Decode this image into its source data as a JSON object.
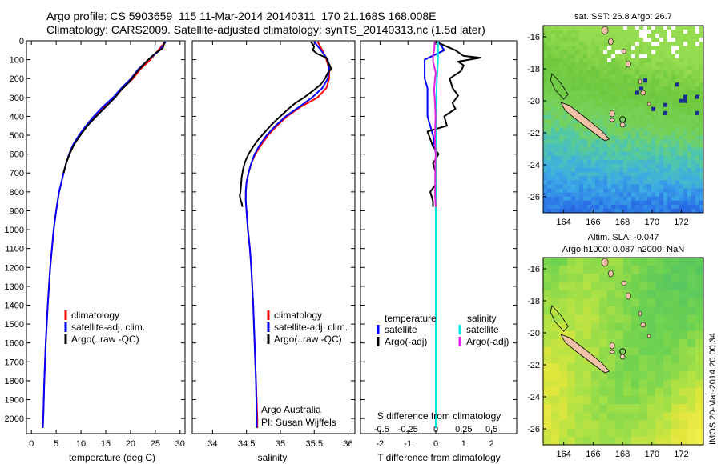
{
  "header": {
    "line1": "Argo profile: CS 5903659_115 11-Mar-2014 20140311_170 21.168S 168.008E",
    "line2": "Climatology: CARS2009. Satellite-adjusted climatology: synTS_20140313.nc (1.5d later)"
  },
  "footer": {
    "stamp": "IMOS 20-Mar-2014 20:00:34"
  },
  "credits": {
    "line1": "Argo Australia",
    "line2": "PI: Susan Wijffels"
  },
  "colors": {
    "climatology": "#ff0000",
    "satellite": "#0000ff",
    "argo": "#000000",
    "salinity_satellite": "#00e5e5",
    "salinity_argo": "#e020e0"
  },
  "chart_data": [
    {
      "id": "temperature",
      "type": "line",
      "xlabel": "temperature (deg C)",
      "ylabel": "depth",
      "xlim": [
        -1,
        31
      ],
      "ylim": [
        2080,
        0
      ],
      "xticks": [
        0,
        5,
        10,
        15,
        20,
        25,
        30
      ],
      "xtick_labels": [
        "0",
        "5",
        "10",
        "15",
        "20",
        "25",
        "30"
      ],
      "yticks": [
        0,
        100,
        200,
        300,
        400,
        500,
        600,
        700,
        800,
        900,
        1000,
        1100,
        1200,
        1300,
        1400,
        1500,
        1600,
        1700,
        1800,
        1900,
        2000
      ],
      "ytick_labels": [
        "0",
        "100",
        "200",
        "300",
        "400",
        "500",
        "600",
        "700",
        "800",
        "900",
        "1000",
        "1100",
        "1200",
        "1300",
        "1400",
        "1500",
        "1600",
        "1700",
        "1800",
        "1900",
        "2000"
      ],
      "legend": [
        "climatology",
        "satellite-adj. clim.",
        "Argo(..raw -QC)"
      ],
      "series": [
        {
          "name": "climatology",
          "depth": [
            5,
            50,
            100,
            150,
            200,
            250,
            300,
            350,
            400,
            450,
            500,
            550,
            600,
            650,
            700,
            800,
            900,
            1000,
            1200,
            1400,
            1600,
            1800,
            2000,
            2050
          ],
          "values": [
            27.0,
            25.6,
            24.0,
            22.0,
            20.5,
            18.5,
            16.8,
            14.7,
            12.8,
            11.2,
            9.7,
            8.5,
            7.7,
            7.0,
            6.5,
            5.6,
            5.0,
            4.5,
            3.8,
            3.3,
            2.9,
            2.6,
            2.4,
            2.3
          ]
        },
        {
          "name": "satellite-adj. clim.",
          "depth": [
            5,
            50,
            100,
            150,
            200,
            250,
            300,
            350,
            400,
            450,
            500,
            550,
            600,
            650,
            700,
            800,
            900,
            1000,
            1200,
            1400,
            1600,
            1800,
            2000,
            2050
          ],
          "values": [
            27.1,
            25.9,
            23.6,
            21.6,
            20.1,
            18.2,
            16.5,
            14.4,
            12.6,
            11.0,
            9.6,
            8.4,
            7.6,
            7.0,
            6.5,
            5.6,
            5.0,
            4.5,
            3.8,
            3.3,
            2.9,
            2.6,
            2.4,
            2.3
          ]
        },
        {
          "name": "Argo(..raw -QC)",
          "depth": [
            5,
            40,
            60,
            80,
            100,
            120,
            150,
            180,
            200,
            230,
            260,
            300,
            350,
            400,
            450,
            500,
            550,
            600,
            650,
            700
          ],
          "values": [
            26.9,
            26.5,
            25.3,
            24.4,
            23.6,
            22.8,
            21.8,
            20.8,
            20.3,
            19.3,
            18.1,
            16.9,
            15.0,
            13.1,
            11.3,
            9.9,
            8.6,
            7.7,
            7.0,
            6.5
          ]
        }
      ]
    },
    {
      "id": "salinity",
      "type": "line",
      "xlabel": "salinity",
      "ylabel": "depth",
      "xlim": [
        33.7,
        36.1
      ],
      "ylim": [
        2080,
        0
      ],
      "xticks": [
        34,
        34.5,
        35,
        35.5,
        36
      ],
      "xtick_labels": [
        "34",
        "34.5",
        "35",
        "35.5",
        "36"
      ],
      "legend": [
        "climatology",
        "satellite-adj. clim.",
        "Argo(..raw -QC)"
      ],
      "series": [
        {
          "name": "climatology",
          "depth": [
            5,
            50,
            100,
            150,
            200,
            250,
            300,
            350,
            400,
            450,
            500,
            550,
            600,
            650,
            700,
            750,
            800,
            850,
            900,
            1000,
            1100,
            1200,
            1400,
            1600,
            1800,
            2000,
            2050
          ],
          "values": [
            35.55,
            35.62,
            35.68,
            35.72,
            35.72,
            35.68,
            35.55,
            35.3,
            35.1,
            34.95,
            34.82,
            34.72,
            34.63,
            34.57,
            34.53,
            34.5,
            34.49,
            34.49,
            34.5,
            34.52,
            34.55,
            34.57,
            34.6,
            34.62,
            34.64,
            34.66,
            34.66
          ]
        },
        {
          "name": "satellite-adj. clim.",
          "depth": [
            5,
            50,
            100,
            150,
            200,
            250,
            300,
            350,
            400,
            450,
            500,
            550,
            600,
            650,
            700,
            750,
            800,
            850,
            900,
            1000,
            1100,
            1200,
            1400,
            1600,
            1800,
            2000,
            2050
          ],
          "values": [
            35.5,
            35.6,
            35.7,
            35.72,
            35.7,
            35.62,
            35.47,
            35.28,
            35.08,
            34.93,
            34.8,
            34.7,
            34.62,
            34.57,
            34.53,
            34.5,
            34.49,
            34.49,
            34.5,
            34.52,
            34.55,
            34.57,
            34.6,
            34.62,
            34.64,
            34.65,
            34.65
          ]
        },
        {
          "name": "Argo(..raw -QC)",
          "depth": [
            5,
            30,
            50,
            70,
            90,
            110,
            130,
            150,
            170,
            200,
            230,
            260,
            300,
            330,
            360,
            400,
            440,
            480,
            520,
            560,
            600,
            640,
            680,
            720,
            760,
            800,
            820,
            840,
            860,
            880
          ],
          "values": [
            35.45,
            35.5,
            35.48,
            35.55,
            35.68,
            35.7,
            35.73,
            35.75,
            35.7,
            35.66,
            35.6,
            35.5,
            35.35,
            35.22,
            35.12,
            35.0,
            34.88,
            34.78,
            34.68,
            34.6,
            34.53,
            34.48,
            34.45,
            34.43,
            34.42,
            34.41,
            34.4,
            34.41,
            34.43,
            34.44
          ]
        }
      ]
    },
    {
      "id": "difference",
      "type": "line",
      "xlabel": "T difference from climatology",
      "x2label": "S difference from climatology",
      "ylabel": "depth",
      "xlim": [
        -2.7,
        2.9
      ],
      "ylim": [
        2080,
        0
      ],
      "xticks": [
        -2,
        -1,
        0,
        1,
        2
      ],
      "xtick_labels": [
        "-2",
        "-1",
        "0",
        "1",
        "2"
      ],
      "x2tick_labels": [
        "-0.5",
        "-0.25",
        "0",
        "0.25",
        "0.5"
      ],
      "legend_headers": [
        "temperature",
        "salinity"
      ],
      "legend": [
        "satellite",
        "Argo(-adj)",
        "satellite",
        "Argo(-adj)"
      ],
      "series": [
        {
          "name": "temperature satellite",
          "depth": [
            5,
            50,
            100,
            150,
            200,
            250,
            300,
            400,
            500,
            600,
            700,
            800,
            1000,
            1200,
            1500,
            1800,
            2050
          ],
          "values": [
            0.1,
            0.3,
            -0.4,
            -0.4,
            -0.4,
            -0.3,
            -0.3,
            -0.3,
            -0.1,
            0.0,
            0.0,
            0.0,
            0.0,
            0.0,
            0.0,
            0.0,
            0.0
          ]
        },
        {
          "name": "temperature Argo(-adj)",
          "depth": [
            5,
            50,
            80,
            90,
            110,
            130,
            160,
            200,
            250,
            290,
            330,
            360,
            400,
            450,
            480,
            520,
            560,
            600,
            650,
            700,
            760,
            800,
            850,
            880
          ],
          "values": [
            0.0,
            0.7,
            1.0,
            1.6,
            0.8,
            1.0,
            0.9,
            0.5,
            0.6,
            0.8,
            0.6,
            0.7,
            0.3,
            0.4,
            -0.3,
            -0.2,
            -0.1,
            0.1,
            -0.1,
            0.0,
            0.0,
            -0.2,
            -0.1,
            -0.1
          ]
        },
        {
          "name": "salinity satellite",
          "depth": [
            5,
            100,
            200,
            300,
            400,
            500,
            600,
            700,
            800,
            900,
            1000,
            1200,
            1500,
            1800,
            2050
          ],
          "values": [
            0.08,
            0.08,
            0.04,
            0.02,
            0.0,
            0.01,
            0.0,
            0.0,
            0.0,
            0.0,
            0.0,
            0.0,
            0.0,
            0.0,
            0.0
          ]
        },
        {
          "name": "salinity Argo(-adj)",
          "depth": [
            5,
            40,
            80,
            110,
            140,
            170,
            200,
            260,
            300,
            360,
            400,
            450,
            500,
            550,
            600,
            650,
            700,
            760,
            800,
            840,
            880
          ],
          "values": [
            -0.05,
            -0.05,
            -0.1,
            -0.1,
            -0.05,
            0.0,
            -0.03,
            -0.06,
            -0.04,
            -0.02,
            -0.01,
            -0.02,
            -0.03,
            -0.03,
            0.0,
            -0.02,
            -0.02,
            -0.02,
            -0.03,
            -0.02,
            0.0
          ]
        }
      ]
    },
    {
      "id": "sst_map",
      "type": "heatmap",
      "title": "sat. SST: 26.8 Argo: 26.7",
      "xlim": [
        162.6,
        173.5
      ],
      "ylim": [
        -27.0,
        -15.3
      ],
      "xticks": [
        164,
        166,
        168,
        170,
        172
      ],
      "xtick_labels": [
        "164",
        "166",
        "168",
        "170",
        "172"
      ],
      "yticks": [
        -16,
        -18,
        -20,
        -22,
        -24,
        -26
      ],
      "ytick_labels": [
        "-16",
        "-18",
        "-20",
        "-22",
        "-24",
        "-26"
      ],
      "sat_sst": 26.8,
      "argo_sst": 26.7,
      "float_position": {
        "lat": -21.168,
        "lon": 168.008
      }
    },
    {
      "id": "sla_map",
      "type": "heatmap",
      "title": "Altim. SLA: -0.047",
      "subtitle": "Argo h1000: 0.087 h2000: NaN",
      "xlim": [
        162.6,
        173.5
      ],
      "ylim": [
        -27.0,
        -15.3
      ],
      "xticks": [
        164,
        166,
        168,
        170,
        172
      ],
      "xtick_labels": [
        "164",
        "166",
        "168",
        "170",
        "172"
      ],
      "yticks": [
        -16,
        -18,
        -20,
        -22,
        -24,
        -26
      ],
      "ytick_labels": [
        "-16",
        "-18",
        "-20",
        "-22",
        "-24",
        "-26"
      ],
      "sla": -0.047,
      "h1000": 0.087,
      "h2000": "NaN",
      "float_position": {
        "lat": -21.168,
        "lon": 168.008
      }
    }
  ]
}
